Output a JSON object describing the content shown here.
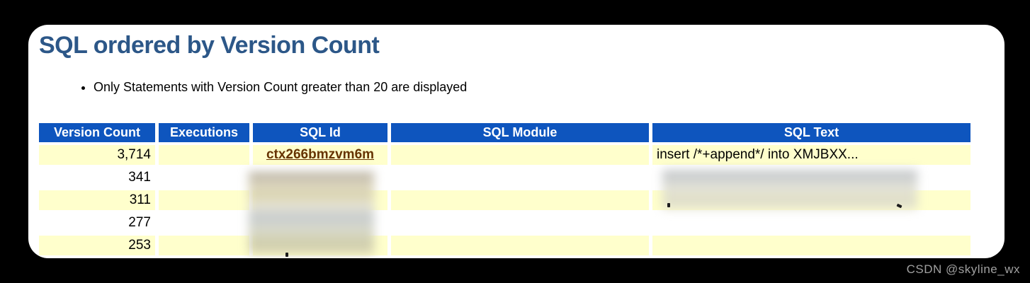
{
  "page": {
    "title": "SQL ordered by Version Count",
    "note": "Only Statements with Version Count greater than 20 are displayed",
    "watermark": "CSDN @skyline_wx"
  },
  "colors": {
    "header_bg": "#0e55be",
    "row_alt_bg": "#ffffcc",
    "title_color": "#2c5788",
    "link_color": "#663300",
    "watermark_color": "#a0a0a0",
    "page_background": "#000000",
    "card_background": "#ffffff"
  },
  "table": {
    "columns": [
      "Version Count",
      "Executions",
      "SQL Id",
      "SQL Module",
      "SQL Text"
    ],
    "rows": [
      {
        "version_count": "3,714",
        "executions": "",
        "sql_id": "ctx266bmzvm6m",
        "sql_module": "",
        "sql_text": "insert /*+append*/ into XMJBXX..."
      },
      {
        "version_count": "341",
        "executions": "",
        "sql_id": "",
        "sql_module": "",
        "sql_text": ""
      },
      {
        "version_count": "311",
        "executions": "",
        "sql_id": "",
        "sql_module": "",
        "sql_text": ""
      },
      {
        "version_count": "277",
        "executions": "",
        "sql_id": "",
        "sql_module": "",
        "sql_text": ""
      },
      {
        "version_count": "253",
        "executions": "",
        "sql_id": "",
        "sql_module": "",
        "sql_text": ""
      }
    ]
  }
}
